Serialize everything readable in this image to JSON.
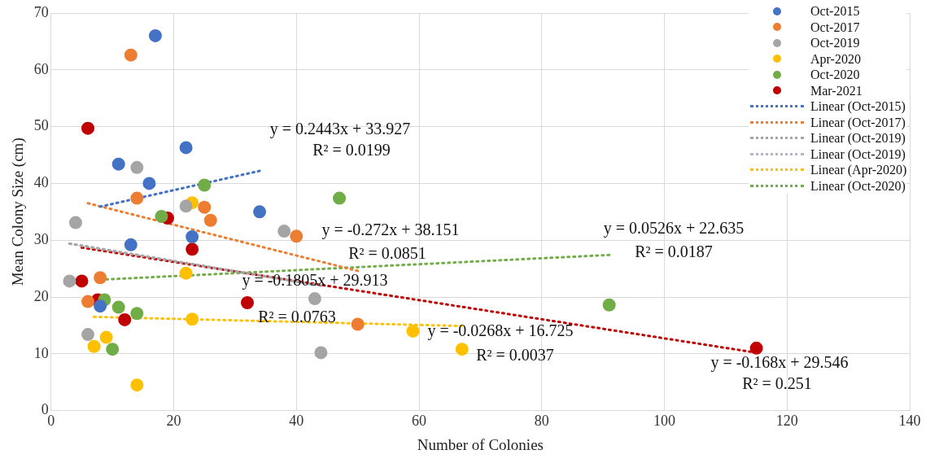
{
  "chart_data": {
    "type": "scatter",
    "xlabel": "Number of Colonies",
    "ylabel": "Mean Colony Size (cm)",
    "xlim": [
      0,
      140
    ],
    "xticks": [
      0,
      20,
      40,
      60,
      80,
      100,
      120,
      140
    ],
    "ylim": [
      0,
      70
    ],
    "yticks": [
      0,
      10,
      20,
      30,
      40,
      50,
      60,
      70
    ],
    "grid": true,
    "legend": "top right",
    "marker": "circle",
    "series": [
      {
        "name": "Oct-2015",
        "color": "#4472c4",
        "x": [
          17,
          22,
          11,
          16,
          34,
          23,
          13,
          8
        ],
        "values": [
          66,
          46.3,
          43.4,
          40,
          35,
          30.6,
          29.2,
          18.4
        ]
      },
      {
        "name": "Oct-2017",
        "color": "#ed7d31",
        "x": [
          13,
          14,
          25,
          26,
          8,
          6,
          40,
          50
        ],
        "values": [
          62.6,
          37.4,
          35.8,
          33.5,
          23.4,
          19.2,
          30.7,
          15.2
        ]
      },
      {
        "name": "Oct-2019",
        "color": "#a5a5a5",
        "x": [
          14,
          4,
          22,
          38,
          3,
          6,
          43,
          44
        ],
        "values": [
          42.8,
          33.1,
          36,
          31.6,
          22.8,
          13.4,
          19.7,
          10.2
        ]
      },
      {
        "name": "Apr-2020",
        "color": "#ffc000",
        "x": [
          23,
          22,
          23,
          9,
          7,
          14,
          59,
          67
        ],
        "values": [
          36.6,
          24.2,
          16.1,
          12.9,
          11.3,
          4.5,
          14,
          10.8
        ]
      },
      {
        "name": "Oct-2020",
        "color": "#70ad47",
        "x": [
          25,
          18,
          8.7,
          11,
          14,
          10,
          47,
          91
        ],
        "values": [
          39.7,
          34.2,
          19.5,
          18.2,
          17.1,
          10.8,
          37.4,
          18.6
        ]
      },
      {
        "name": "Mar-2021",
        "color": "#c00000",
        "x": [
          6,
          19,
          23,
          5,
          7.6,
          12,
          32,
          115
        ],
        "values": [
          49.7,
          33.9,
          28.4,
          22.8,
          19.5,
          16,
          19,
          11
        ]
      },
      {
        "name": "Linear (Oct-2015)",
        "type": "line",
        "line_style": "dotted",
        "marker": "none",
        "color": "#4472c4",
        "x": [
          8,
          34
        ],
        "values": [
          35.9,
          42.2
        ]
      },
      {
        "name": "Linear (Oct-2017)",
        "type": "line",
        "line_style": "dotted",
        "marker": "none",
        "color": "#ed7d31",
        "x": [
          6,
          50
        ],
        "values": [
          36.5,
          24.6
        ]
      },
      {
        "name": "Linear (Oct-2019)",
        "type": "line",
        "line_style": "dotted",
        "marker": "none",
        "color": "#a5a5a5",
        "x": [
          3,
          44
        ],
        "values": [
          29.4,
          22
        ]
      },
      {
        "name": "Linear (Oct-2019)",
        "type": "line",
        "line_style": "dotted",
        "marker": "none",
        "color": "#b4b4c8",
        "x": [
          3,
          44
        ],
        "values": [
          29.4,
          22
        ]
      },
      {
        "name": "Linear (Apr-2020)",
        "type": "line",
        "line_style": "dotted",
        "marker": "none",
        "color": "#ffc000",
        "x": [
          7,
          67
        ],
        "values": [
          16.5,
          14.9
        ]
      },
      {
        "name": "Linear (Oct-2020)",
        "type": "line",
        "line_style": "dotted",
        "marker": "none",
        "color": "#70ad47",
        "x": [
          9,
          91
        ],
        "values": [
          23.1,
          27.4
        ]
      },
      {
        "type": "line",
        "line_style": "dotted",
        "marker": "none",
        "color": "#c00000",
        "x": [
          5,
          115
        ],
        "values": [
          28.7,
          10.2
        ]
      }
    ],
    "annotations": [
      "y = 0.2443x + 33.927",
      "R² = 0.0199",
      "y = -0.272x + 38.151",
      "R² = 0.0851",
      "y = -0.1805x + 29.913",
      "R² = 0.0763",
      "y = -0.0268x + 16.725",
      "R² = 0.0037",
      "y = 0.0526x + 22.635",
      "R² = 0.0187",
      "y = -0.168x + 29.546",
      "R² = 0.251"
    ]
  }
}
